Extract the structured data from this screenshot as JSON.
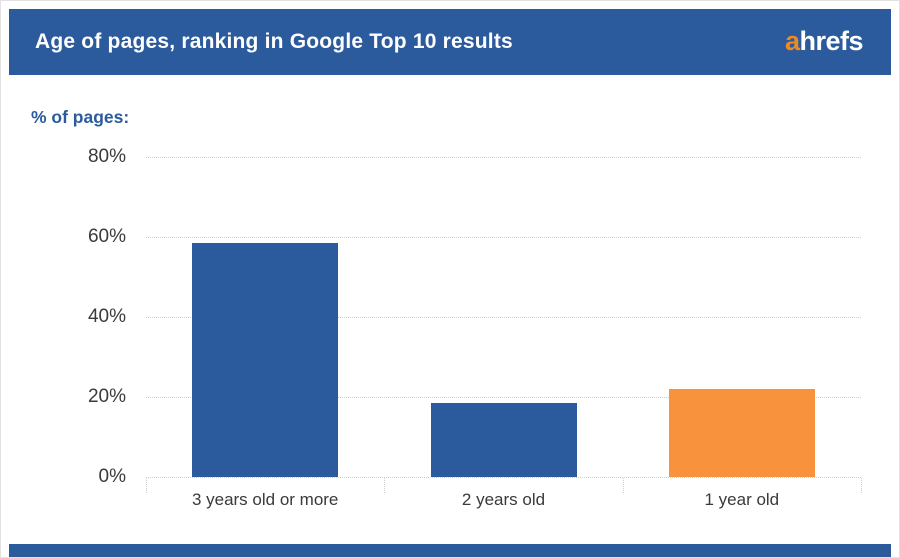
{
  "header": {
    "title": "Age of pages, ranking in Google Top 10 results",
    "logo_a": "a",
    "logo_rest": "hrefs"
  },
  "colors": {
    "header_blue": "#2b5b9d",
    "footer_blue": "#2b5b9d",
    "bar_blue": "#2b5b9d",
    "bar_orange": "#f8923d",
    "logo_orange": "#ef8a1e",
    "grid_gray": "#cfcfcf",
    "axis_text": "#3a3a3a",
    "ylabel_blue": "#2b5b9d"
  },
  "chart_data": {
    "type": "bar",
    "title": "Age of pages, ranking in Google Top 10 results",
    "ylabel": "% of pages:",
    "xlabel": "",
    "categories": [
      "3 years old or more",
      "2 years old",
      "1 year old"
    ],
    "values": [
      58.5,
      18.5,
      22
    ],
    "bar_color_names": [
      "bar_blue",
      "bar_blue",
      "bar_orange"
    ],
    "yticks": [
      0,
      20,
      40,
      60,
      80
    ],
    "ytick_labels": [
      "0%",
      "20%",
      "40%",
      "60%",
      "80%"
    ],
    "ylim": [
      0,
      85
    ],
    "grid": "horizontal-dotted",
    "legend": "none"
  }
}
